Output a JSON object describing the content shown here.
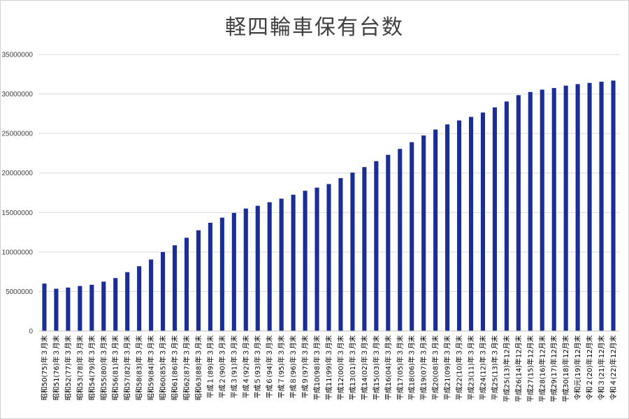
{
  "chart_data": {
    "type": "bar",
    "title": "軽四輪車保有台数",
    "xlabel": "",
    "ylabel": "",
    "ylim": [
      0,
      35000000
    ],
    "yticks": [
      0,
      5000000,
      10000000,
      15000000,
      20000000,
      25000000,
      30000000,
      35000000
    ],
    "grid": true,
    "legend": "none",
    "bar_color": "#1a2e96",
    "categories": [
      "昭和50(75)年３月末",
      "昭和51(76)年３月末",
      "昭和52(77)年３月末",
      "昭和53(78)年３月末",
      "昭和54(79)年３月末",
      "昭和55(80)年３月末",
      "昭和56(81)年３月末",
      "昭和57(82)年３月末",
      "昭和58(83)年３月末",
      "昭和59(84)年３月末",
      "昭和60(85)年３月末",
      "昭和61(86)年３月末",
      "昭和62(87)年３月末",
      "昭和63(88)年３月末",
      "平成１(89)年３月末",
      "平成２(90)年３月末",
      "平成３(91)年３月末",
      "平成４(92)年３月末",
      "平成５(93)年３月末",
      "平成６(94)年３月末",
      "平成７(95)年３月末",
      "平成８(96)年３月末",
      "平成９(97)年３月末",
      "平成10(98)年３月末",
      "平成11(99)年３月末",
      "平成12(00)年３月末",
      "平成13(01)年３月末",
      "平成14(02)年３月末",
      "平成15(03)年３月末",
      "平成16(04)年３月末",
      "平成17(05)年３月末",
      "平成18(06)年３月末",
      "平成19(07)年３月末",
      "平成20(08)年３月末",
      "平成21(09)年３月末",
      "平成22(10)年３月末",
      "平成23(11)年３月末",
      "平成24(12)年３月末",
      "平成25(13)年３月末",
      "平成25(13)年12月末",
      "平成26(14)年12月末",
      "平成27(15)年12月末",
      "平成28(16)年12月末",
      "平成29(17)年12月末",
      "平成30(18)年12月末",
      "令和元(19)年12月末",
      "令和２(20)年12月末",
      "令和３(21)年12月末",
      "令和４(22)年12月末"
    ],
    "values": [
      6000000,
      5350000,
      5500000,
      5700000,
      5850000,
      6250000,
      6700000,
      7450000,
      8200000,
      9050000,
      10000000,
      10850000,
      11800000,
      12750000,
      13700000,
      14350000,
      14950000,
      15500000,
      15850000,
      16300000,
      16750000,
      17250000,
      17750000,
      18150000,
      18600000,
      19350000,
      20050000,
      20750000,
      21500000,
      22300000,
      23050000,
      23900000,
      24750000,
      25500000,
      26150000,
      26650000,
      27100000,
      27650000,
      28300000,
      29050000,
      29850000,
      30250000,
      30550000,
      30750000,
      31050000,
      31250000,
      31400000,
      31550000,
      31700000
    ]
  }
}
